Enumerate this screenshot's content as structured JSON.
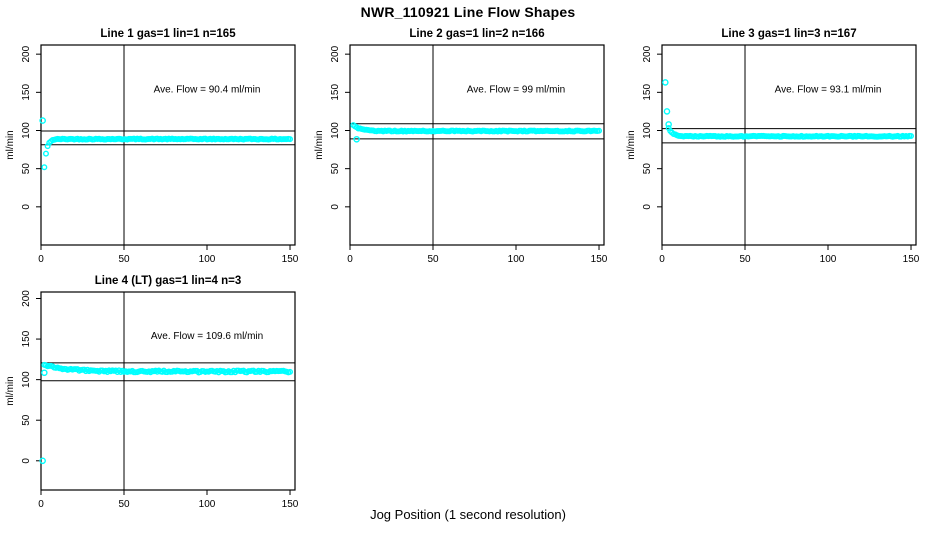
{
  "title": "NWR_110921  Line Flow Shapes",
  "xlabel": "Jog Position (1 second resolution)",
  "style": {
    "point_color": "#00ffff",
    "line_color": "#000000",
    "background": "#ffffff",
    "marker": "open-circle"
  },
  "chart_data": [
    {
      "type": "scatter",
      "title": "Line 1 gas=1 lin=1 n=165",
      "annotation": "Ave. Flow =  90.4  ml/min",
      "ave_flow": 90.4,
      "ylabel": "ml/min",
      "x_ticks": [
        0,
        50,
        100,
        150
      ],
      "y_ticks": [
        0,
        50,
        100,
        150,
        200
      ],
      "xlim": [
        0,
        153
      ],
      "ylim": [
        -50,
        212
      ],
      "vline_x": 50,
      "hlines": [
        99.4,
        81.4
      ],
      "annotation_pos": [
        100,
        150
      ],
      "series": {
        "x_start": 2,
        "x_end": 150,
        "plateau": 88.8,
        "amp": -37,
        "tau": 1.5,
        "jitter": 0.6
      },
      "outliers": [
        [
          1,
          113
        ]
      ]
    },
    {
      "type": "scatter",
      "title": "Line 2 gas=1 lin=2 n=166",
      "annotation": "Ave. Flow =  99  ml/min",
      "ave_flow": 99,
      "ylabel": "ml/min",
      "x_ticks": [
        0,
        50,
        100,
        150
      ],
      "y_ticks": [
        0,
        50,
        100,
        150,
        200
      ],
      "xlim": [
        0,
        153
      ],
      "ylim": [
        -50,
        212
      ],
      "vline_x": 50,
      "hlines": [
        108.9,
        89.1
      ],
      "annotation_pos": [
        100,
        150
      ],
      "series": {
        "x_start": 2,
        "x_end": 150,
        "plateau": 99.3,
        "amp": 8,
        "tau": 4,
        "jitter": 0.6
      },
      "outliers": [
        [
          4,
          88.5
        ]
      ]
    },
    {
      "type": "scatter",
      "title": "Line 3 gas=1 lin=3 n=167",
      "annotation": "Ave. Flow =  93.1  ml/min",
      "ave_flow": 93.1,
      "ylabel": "ml/min",
      "x_ticks": [
        0,
        50,
        100,
        150
      ],
      "y_ticks": [
        0,
        50,
        100,
        150,
        200
      ],
      "xlim": [
        0,
        153
      ],
      "ylim": [
        -50,
        212
      ],
      "vline_x": 50,
      "hlines": [
        102.4,
        83.8
      ],
      "annotation_pos": [
        100,
        150
      ],
      "series": {
        "x_start": 4,
        "x_end": 150,
        "plateau": 92.4,
        "amp": 11,
        "tau": 2.5,
        "jitter": 0.6
      },
      "outliers": [
        [
          2,
          163
        ],
        [
          3,
          125
        ],
        [
          4,
          108
        ]
      ]
    },
    {
      "type": "scatter",
      "title": "Line 4 (LT) gas=1 lin=4 n=3",
      "annotation": "Ave. Flow =  109.6  ml/min",
      "ave_flow": 109.6,
      "ylabel": "ml/min",
      "x_ticks": [
        0,
        50,
        100,
        150
      ],
      "y_ticks": [
        0,
        50,
        100,
        150,
        200
      ],
      "xlim": [
        0,
        153
      ],
      "ylim": [
        -36,
        208
      ],
      "vline_x": 50,
      "hlines": [
        120.6,
        98.6
      ],
      "annotation_pos": [
        100,
        150
      ],
      "series": {
        "x_start": 2,
        "x_end": 150,
        "plateau": 110,
        "amp": 8.5,
        "tau": 14,
        "jitter": 1.2
      },
      "outliers": [
        [
          1,
          0
        ],
        [
          2,
          108.5
        ]
      ]
    }
  ]
}
